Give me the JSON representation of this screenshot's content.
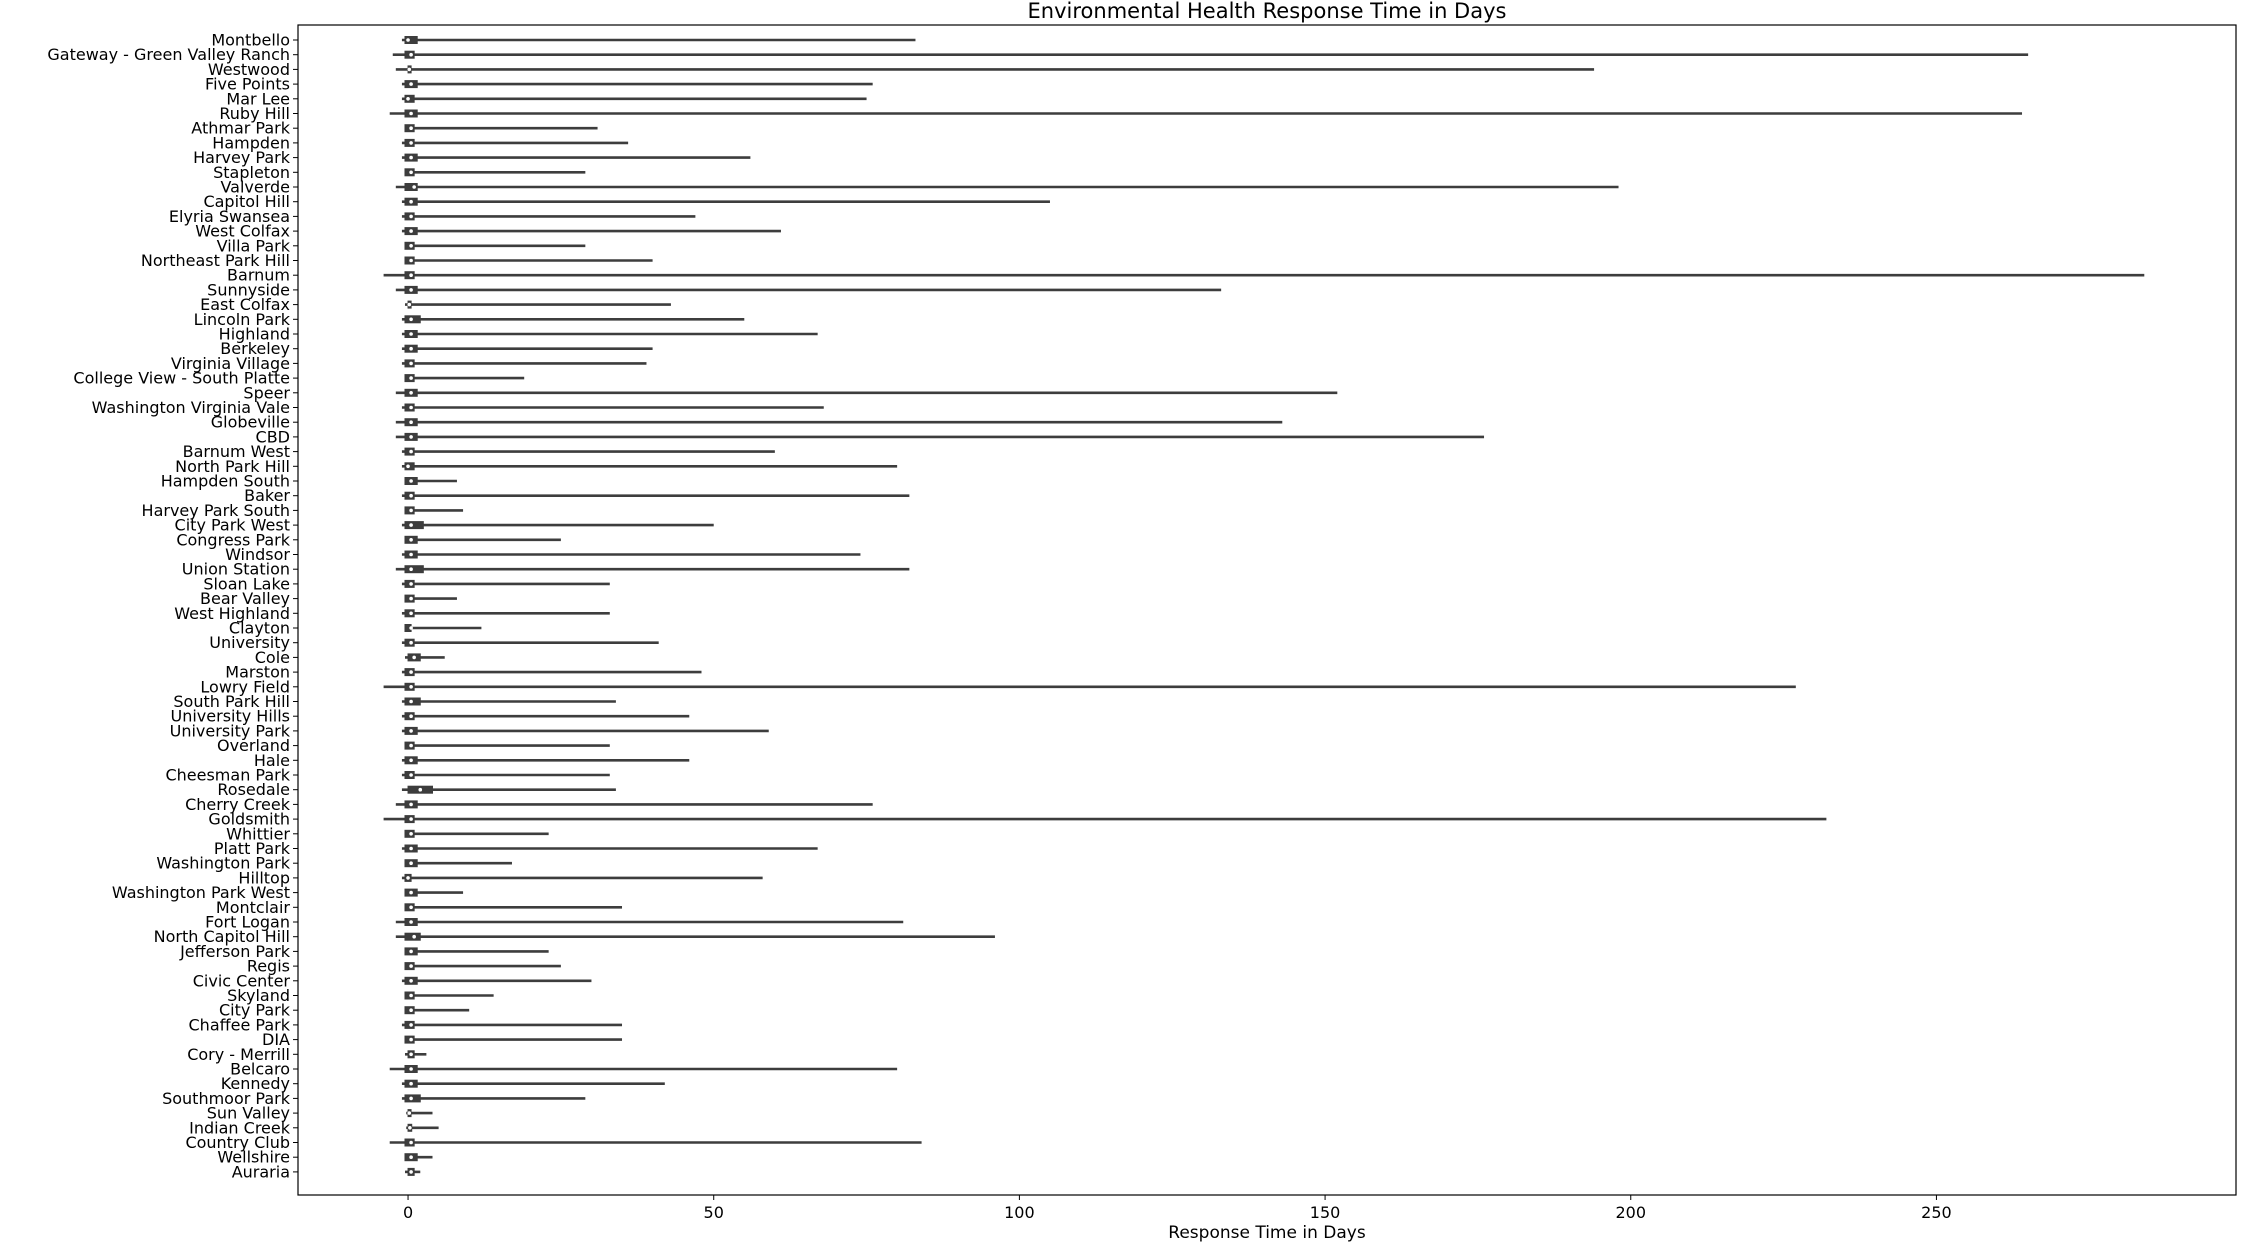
{
  "chart_data": {
    "type": "violin",
    "orientation": "horizontal",
    "title": "Environmental Health Response Time in Days",
    "xlabel": "Response Time in Days",
    "ylabel": "",
    "xlim": [
      -18,
      299
    ],
    "xticks": [
      0,
      50,
      100,
      150,
      200,
      250
    ],
    "grid": false,
    "legend": "none",
    "colors": {
      "violin_line": "#3d3d3d",
      "box": "#3d3d3d",
      "median": "#ffffff"
    },
    "categories": [
      {
        "name": "Montbello",
        "min": -1,
        "q1": -0.5,
        "median": 0,
        "q3": 1.5,
        "max": 83
      },
      {
        "name": "Gateway - Green Valley Ranch",
        "min": -2.5,
        "q1": -0.5,
        "median": 0.5,
        "q3": 1,
        "max": 265
      },
      {
        "name": "Westwood",
        "min": -2,
        "q1": 0,
        "median": 0.2,
        "q3": 0.5,
        "max": 194
      },
      {
        "name": "Five Points",
        "min": -1,
        "q1": -0.5,
        "median": 0.5,
        "q3": 1.5,
        "max": 76
      },
      {
        "name": "Mar Lee",
        "min": -1,
        "q1": -0.5,
        "median": 0,
        "q3": 1,
        "max": 75
      },
      {
        "name": "Ruby Hill",
        "min": -3,
        "q1": -0.5,
        "median": 0.5,
        "q3": 1.5,
        "max": 264
      },
      {
        "name": "Athmar Park",
        "min": -0.5,
        "q1": -0.5,
        "median": 0.5,
        "q3": 1,
        "max": 31
      },
      {
        "name": "Hampden",
        "min": -1,
        "q1": -0.5,
        "median": 0.5,
        "q3": 1,
        "max": 36
      },
      {
        "name": "Harvey Park",
        "min": -1,
        "q1": -0.5,
        "median": 0.5,
        "q3": 1.5,
        "max": 56
      },
      {
        "name": "Stapleton",
        "min": -0.5,
        "q1": -0.5,
        "median": 0.5,
        "q3": 1,
        "max": 29
      },
      {
        "name": "Valverde",
        "min": -2,
        "q1": -0.5,
        "median": 1,
        "q3": 1.5,
        "max": 198
      },
      {
        "name": "Capitol Hill",
        "min": -1,
        "q1": -0.5,
        "median": 0.5,
        "q3": 1.5,
        "max": 105
      },
      {
        "name": "Elyria Swansea",
        "min": -1,
        "q1": -0.5,
        "median": 0.5,
        "q3": 1,
        "max": 47
      },
      {
        "name": "West Colfax",
        "min": -1,
        "q1": -0.5,
        "median": 0.5,
        "q3": 1.5,
        "max": 61
      },
      {
        "name": "Villa Park",
        "min": -0.5,
        "q1": -0.5,
        "median": 0.5,
        "q3": 1,
        "max": 29
      },
      {
        "name": "Northeast Park Hill",
        "min": -0.5,
        "q1": -0.5,
        "median": 0.5,
        "q3": 1,
        "max": 40
      },
      {
        "name": "Barnum",
        "min": -4,
        "q1": -0.5,
        "median": 0.5,
        "q3": 1,
        "max": 284
      },
      {
        "name": "Sunnyside",
        "min": -2,
        "q1": -0.5,
        "median": 0.5,
        "q3": 1.5,
        "max": 133
      },
      {
        "name": "East Colfax",
        "min": -0.5,
        "q1": 0,
        "median": 0.2,
        "q3": 0.5,
        "max": 43
      },
      {
        "name": "Lincoln Park",
        "min": -1,
        "q1": -0.5,
        "median": 0.5,
        "q3": 2,
        "max": 55
      },
      {
        "name": "Highland",
        "min": -1,
        "q1": -0.5,
        "median": 0.5,
        "q3": 1.5,
        "max": 67
      },
      {
        "name": "Berkeley",
        "min": -1,
        "q1": -0.5,
        "median": 0.5,
        "q3": 1.5,
        "max": 40
      },
      {
        "name": "Virginia Village",
        "min": -1,
        "q1": -0.5,
        "median": 0.5,
        "q3": 1,
        "max": 39
      },
      {
        "name": "College View - South Platte",
        "min": -0.5,
        "q1": -0.5,
        "median": 0.5,
        "q3": 1,
        "max": 19
      },
      {
        "name": "Speer",
        "min": -2,
        "q1": -0.5,
        "median": 0.5,
        "q3": 1.5,
        "max": 152
      },
      {
        "name": "Washington Virginia Vale",
        "min": -1,
        "q1": -0.5,
        "median": 0.5,
        "q3": 1,
        "max": 68
      },
      {
        "name": "Globeville",
        "min": -2,
        "q1": -0.5,
        "median": 0.5,
        "q3": 1.5,
        "max": 143
      },
      {
        "name": "CBD",
        "min": -2,
        "q1": -0.5,
        "median": 0.5,
        "q3": 1.5,
        "max": 176
      },
      {
        "name": "Barnum West",
        "min": -1,
        "q1": -0.5,
        "median": 0.5,
        "q3": 1,
        "max": 60
      },
      {
        "name": "North Park Hill",
        "min": -1,
        "q1": -0.5,
        "median": 0,
        "q3": 1,
        "max": 80
      },
      {
        "name": "Hampden South",
        "min": -0.5,
        "q1": -0.5,
        "median": 0.5,
        "q3": 1.5,
        "max": 8
      },
      {
        "name": "Baker",
        "min": -1,
        "q1": -0.5,
        "median": 0.5,
        "q3": 1,
        "max": 82
      },
      {
        "name": "Harvey Park South",
        "min": -0.5,
        "q1": -0.5,
        "median": 0.5,
        "q3": 1,
        "max": 9
      },
      {
        "name": "City Park West",
        "min": -1,
        "q1": -0.5,
        "median": 0.5,
        "q3": 2.5,
        "max": 50
      },
      {
        "name": "Congress Park",
        "min": -0.5,
        "q1": -0.5,
        "median": 0.5,
        "q3": 1.5,
        "max": 25
      },
      {
        "name": "Windsor",
        "min": -1,
        "q1": -0.5,
        "median": 0.5,
        "q3": 1.5,
        "max": 74
      },
      {
        "name": "Union Station",
        "min": -2,
        "q1": -0.5,
        "median": 0.5,
        "q3": 2.5,
        "max": 82
      },
      {
        "name": "Sloan Lake",
        "min": -1,
        "q1": -0.5,
        "median": 0.5,
        "q3": 1,
        "max": 33
      },
      {
        "name": "Bear Valley",
        "min": -0.5,
        "q1": -0.5,
        "median": 0.5,
        "q3": 1,
        "max": 8
      },
      {
        "name": "West Highland",
        "min": -1,
        "q1": -0.5,
        "median": 0.5,
        "q3": 1,
        "max": 33
      },
      {
        "name": "Clayton",
        "min": -0.5,
        "q1": -0.5,
        "median": 0.5,
        "q3": 0.5,
        "max": 12
      },
      {
        "name": "University",
        "min": -1,
        "q1": -0.5,
        "median": 0.5,
        "q3": 1,
        "max": 41
      },
      {
        "name": "Cole",
        "min": -0.5,
        "q1": 0,
        "median": 1,
        "q3": 2,
        "max": 6
      },
      {
        "name": "Marston",
        "min": -1,
        "q1": -0.5,
        "median": 0.5,
        "q3": 1,
        "max": 48
      },
      {
        "name": "Lowry Field",
        "min": -4,
        "q1": -0.5,
        "median": 0.5,
        "q3": 1,
        "max": 227
      },
      {
        "name": "South Park Hill",
        "min": -1,
        "q1": -0.5,
        "median": 0.5,
        "q3": 2,
        "max": 34
      },
      {
        "name": "University Hills",
        "min": -1,
        "q1": -0.5,
        "median": 0.5,
        "q3": 1,
        "max": 46
      },
      {
        "name": "University Park",
        "min": -1,
        "q1": -0.5,
        "median": 0.5,
        "q3": 1.5,
        "max": 59
      },
      {
        "name": "Overland",
        "min": -0.5,
        "q1": -0.5,
        "median": 0.5,
        "q3": 1,
        "max": 33
      },
      {
        "name": "Hale",
        "min": -1,
        "q1": -0.5,
        "median": 0.5,
        "q3": 1.5,
        "max": 46
      },
      {
        "name": "Cheesman Park",
        "min": -1,
        "q1": -0.5,
        "median": 0.5,
        "q3": 1,
        "max": 33
      },
      {
        "name": "Rosedale",
        "min": -1,
        "q1": 0,
        "median": 2,
        "q3": 4,
        "max": 34
      },
      {
        "name": "Cherry Creek",
        "min": -2,
        "q1": -0.5,
        "median": 0.5,
        "q3": 1.5,
        "max": 76
      },
      {
        "name": "Goldsmith",
        "min": -4,
        "q1": -0.5,
        "median": 0.5,
        "q3": 1,
        "max": 232
      },
      {
        "name": "Whittier",
        "min": -0.5,
        "q1": -0.5,
        "median": 0.5,
        "q3": 1,
        "max": 23
      },
      {
        "name": "Platt Park",
        "min": -1,
        "q1": -0.5,
        "median": 0.5,
        "q3": 1.5,
        "max": 67
      },
      {
        "name": "Washington Park",
        "min": -0.5,
        "q1": -0.5,
        "median": 0.5,
        "q3": 1.5,
        "max": 17
      },
      {
        "name": "Hilltop",
        "min": -1,
        "q1": -0.5,
        "median": 0,
        "q3": 0.5,
        "max": 58
      },
      {
        "name": "Washington Park West",
        "min": -0.5,
        "q1": -0.5,
        "median": 0.5,
        "q3": 1.5,
        "max": 9
      },
      {
        "name": "Montclair",
        "min": -0.5,
        "q1": -0.5,
        "median": 0.5,
        "q3": 1,
        "max": 35
      },
      {
        "name": "Fort Logan",
        "min": -2,
        "q1": -0.5,
        "median": 0.5,
        "q3": 1.5,
        "max": 81
      },
      {
        "name": "North Capitol Hill",
        "min": -2,
        "q1": -0.5,
        "median": 1,
        "q3": 2,
        "max": 96
      },
      {
        "name": "Jefferson Park",
        "min": -0.5,
        "q1": -0.5,
        "median": 0.5,
        "q3": 1.5,
        "max": 23
      },
      {
        "name": "Regis",
        "min": -0.5,
        "q1": -0.5,
        "median": 0.5,
        "q3": 1,
        "max": 25
      },
      {
        "name": "Civic Center",
        "min": -1,
        "q1": -0.5,
        "median": 0.5,
        "q3": 1.5,
        "max": 30
      },
      {
        "name": "Skyland",
        "min": -0.5,
        "q1": -0.5,
        "median": 0.5,
        "q3": 1,
        "max": 14
      },
      {
        "name": "City Park",
        "min": -0.5,
        "q1": -0.5,
        "median": 0.5,
        "q3": 1,
        "max": 10
      },
      {
        "name": "Chaffee Park",
        "min": -1,
        "q1": -0.5,
        "median": 0.5,
        "q3": 1,
        "max": 35
      },
      {
        "name": "DIA",
        "min": -0.5,
        "q1": -0.5,
        "median": 0.5,
        "q3": 1,
        "max": 35
      },
      {
        "name": "Cory - Merrill",
        "min": -0.5,
        "q1": 0,
        "median": 0.5,
        "q3": 1,
        "max": 3
      },
      {
        "name": "Belcaro",
        "min": -3,
        "q1": -0.5,
        "median": 0.5,
        "q3": 1.5,
        "max": 80
      },
      {
        "name": "Kennedy",
        "min": -1,
        "q1": -0.5,
        "median": 0.5,
        "q3": 1.5,
        "max": 42
      },
      {
        "name": "Southmoor Park",
        "min": -1,
        "q1": -0.5,
        "median": 0.5,
        "q3": 2,
        "max": 29
      },
      {
        "name": "Sun Valley",
        "min": -0.3,
        "q1": 0,
        "median": 0.2,
        "q3": 0.3,
        "max": 4
      },
      {
        "name": "Indian Creek",
        "min": -0.3,
        "q1": 0,
        "median": 0.3,
        "q3": 0.6,
        "max": 5
      },
      {
        "name": "Country Club",
        "min": -3,
        "q1": -0.5,
        "median": 0.5,
        "q3": 1,
        "max": 84
      },
      {
        "name": "Wellshire",
        "min": -0.5,
        "q1": -0.5,
        "median": 0.5,
        "q3": 1.5,
        "max": 4
      },
      {
        "name": "Auraria",
        "min": -0.5,
        "q1": 0,
        "median": 0.5,
        "q3": 1,
        "max": 2
      }
    ]
  }
}
